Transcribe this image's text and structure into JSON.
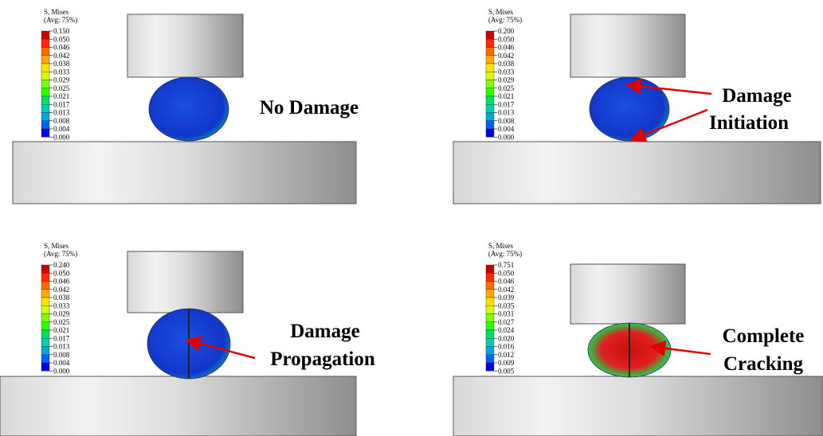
{
  "panels": [
    {
      "legend": {
        "title": "S, Mises",
        "subtitle": "(Avg: 75%)",
        "values": [
          "0.150",
          "0.050",
          "0.046",
          "0.042",
          "0.038",
          "0.033",
          "0.029",
          "0.025",
          "0.021",
          "0.017",
          "0.013",
          "0.008",
          "0.004",
          "0.000"
        ]
      },
      "caption": [
        "No Damage"
      ]
    },
    {
      "legend": {
        "title": "S, Mises",
        "subtitle": "(Avg: 75%)",
        "values": [
          "0.200",
          "0.050",
          "0.046",
          "0.042",
          "0.038",
          "0.033",
          "0.029",
          "0.025",
          "0.021",
          "0.017",
          "0.013",
          "0.008",
          "0.004",
          "0.000"
        ]
      },
      "caption": [
        "Damage",
        "Initiation"
      ]
    },
    {
      "legend": {
        "title": "S, Mises",
        "subtitle": "(Avg: 75%)",
        "values": [
          "0.240",
          "0.050",
          "0.046",
          "0.042",
          "0.038",
          "0.033",
          "0.029",
          "0.025",
          "0.021",
          "0.017",
          "0.013",
          "0.008",
          "0.004",
          "0.000"
        ]
      },
      "caption": [
        "Damage",
        "Propagation"
      ]
    },
    {
      "legend": {
        "title": "S, Mises",
        "subtitle": "(Avg: 75%)",
        "values": [
          "0.751",
          "0.050",
          "0.046",
          "0.042",
          "0.039",
          "0.035",
          "0.031",
          "0.027",
          "0.024",
          "0.020",
          "0.016",
          "0.012",
          "0.009",
          "0.005"
        ]
      },
      "caption": [
        "Complete",
        "Cracking"
      ]
    }
  ]
}
